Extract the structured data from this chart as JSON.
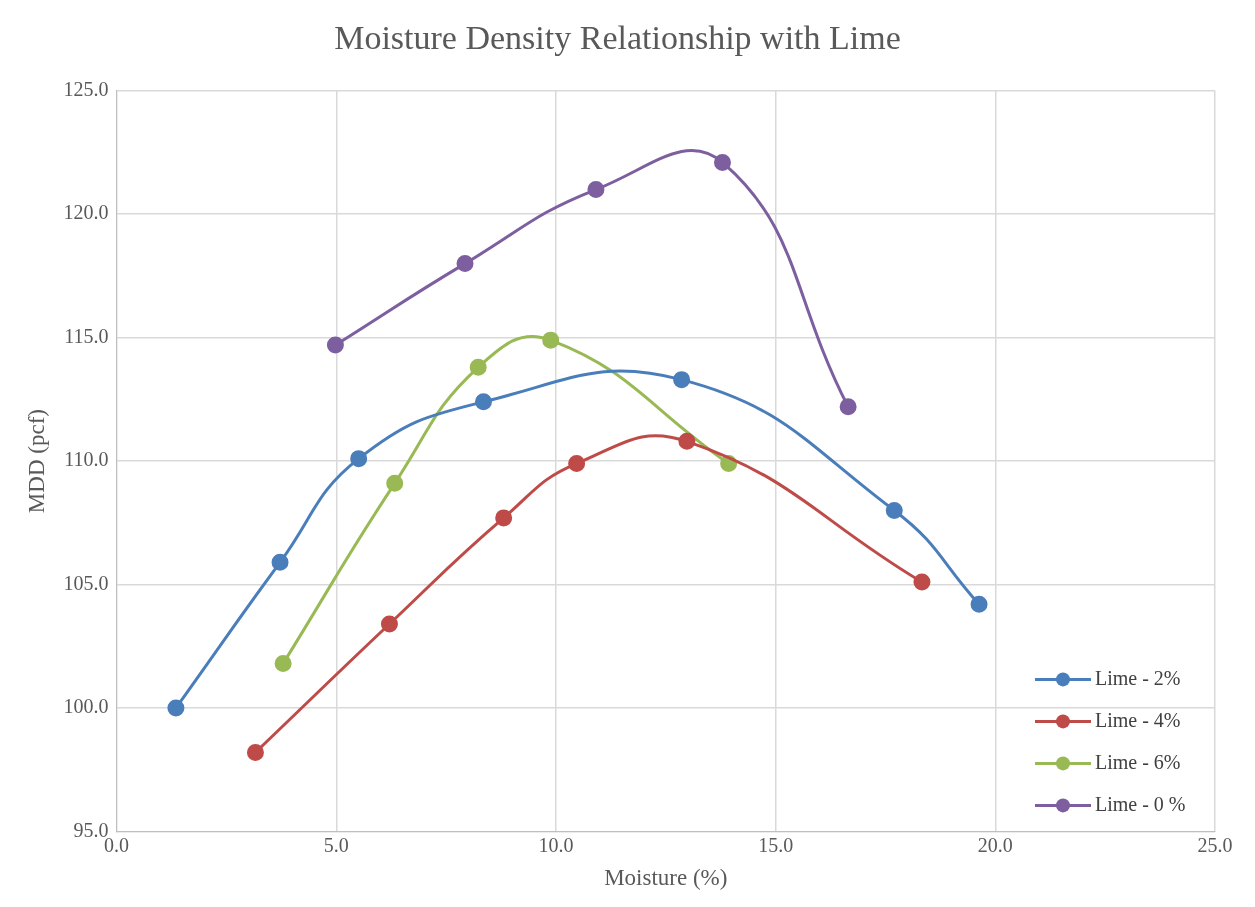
{
  "chart_data": {
    "type": "line",
    "title": "Moisture Density Relationship with Lime",
    "xlabel": "Moisture (%)",
    "ylabel": "MDD (pcf)",
    "xlim": [
      0,
      25
    ],
    "xticks": [
      {
        "value": 0,
        "label": "0.0"
      },
      {
        "value": 5,
        "label": "5.0"
      },
      {
        "value": 10,
        "label": "10.0"
      },
      {
        "value": 15,
        "label": "15.0"
      },
      {
        "value": 20,
        "label": "20.0"
      },
      {
        "value": 25,
        "label": "25.0"
      }
    ],
    "ylim": [
      95,
      125
    ],
    "yticks": [
      {
        "value": 95,
        "label": "95.0"
      },
      {
        "value": 100,
        "label": "100.0"
      },
      {
        "value": 105,
        "label": "105.0"
      },
      {
        "value": 110,
        "label": "110.0"
      },
      {
        "value": 115,
        "label": "115.0"
      },
      {
        "value": 120,
        "label": "120.0"
      },
      {
        "value": 125,
        "label": "125.0"
      }
    ],
    "grid": true,
    "legend": "bottom right",
    "marker": "circle",
    "line_style": "solid",
    "series": [
      {
        "name": "Lime - 2%",
        "color": "#4a7ebb",
        "x": [
          1.35,
          3.72,
          5.51,
          8.35,
          12.86,
          17.7,
          19.63
        ],
        "values": [
          100.0,
          105.9,
          110.1,
          112.4,
          113.3,
          108.0,
          104.2
        ]
      },
      {
        "name": "Lime - 4%",
        "color": "#be4b48",
        "x": [
          3.16,
          6.21,
          8.81,
          10.47,
          12.98,
          18.33
        ],
        "values": [
          98.2,
          103.4,
          107.7,
          109.9,
          110.8,
          105.1
        ]
      },
      {
        "name": "Lime - 6%",
        "color": "#98b954",
        "x": [
          3.79,
          6.33,
          8.23,
          9.88,
          13.93
        ],
        "values": [
          101.8,
          109.1,
          113.8,
          114.9,
          109.9
        ]
      },
      {
        "name": "Lime - 0 %",
        "color": "#7d5fa0",
        "x": [
          4.98,
          7.93,
          10.91,
          13.79,
          16.65
        ],
        "values": [
          114.7,
          118.0,
          121.0,
          122.1,
          112.2
        ]
      }
    ]
  }
}
